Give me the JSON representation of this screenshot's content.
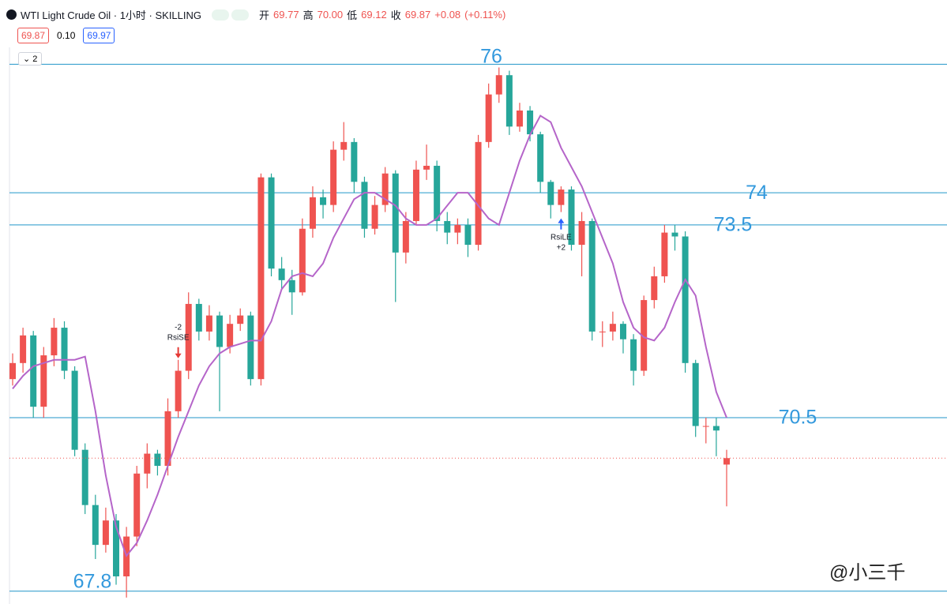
{
  "header": {
    "symbol": "WTI Light Crude Oil · 1小时 · SKILLING",
    "open_label": "开",
    "open": "69.77",
    "high_label": "高",
    "high": "70.00",
    "low_label": "低",
    "low": "69.12",
    "close_label": "收",
    "close": "69.87",
    "change": "+0.08",
    "change_pct": "(+0.11%)"
  },
  "order_bar": {
    "sell": "69.87",
    "spread": "0.10",
    "buy": "69.97"
  },
  "indicators_toggle": "2",
  "watermark": "@小三千",
  "chart_data": {
    "type": "candlestick",
    "ylim": [
      67.6,
      77.0
    ],
    "up_color": "#ef5350",
    "down_color": "#26a69a",
    "level_color": "#2196c9",
    "level_label_color": "#3399dd",
    "levels": [
      76,
      74,
      73.5,
      70.5,
      67.8
    ],
    "candles": [
      [
        71.1,
        71.5,
        71.0,
        71.35
      ],
      [
        71.35,
        71.9,
        71.2,
        71.78
      ],
      [
        71.78,
        71.85,
        70.5,
        70.67
      ],
      [
        70.67,
        71.6,
        70.5,
        71.47
      ],
      [
        71.47,
        72.05,
        71.3,
        71.9
      ],
      [
        71.9,
        72.0,
        71.1,
        71.23
      ],
      [
        71.23,
        71.3,
        69.9,
        70.0
      ],
      [
        70.0,
        70.1,
        69.0,
        69.14
      ],
      [
        69.14,
        69.3,
        68.3,
        68.52
      ],
      [
        68.52,
        69.1,
        68.4,
        68.9
      ],
      [
        68.9,
        69.0,
        67.9,
        68.03
      ],
      [
        68.03,
        68.8,
        67.7,
        68.65
      ],
      [
        68.65,
        69.75,
        68.5,
        69.63
      ],
      [
        69.63,
        70.1,
        69.4,
        69.94
      ],
      [
        69.94,
        70.0,
        69.6,
        69.75
      ],
      [
        69.75,
        70.8,
        69.6,
        70.6
      ],
      [
        70.6,
        71.4,
        70.5,
        71.23
      ],
      [
        71.23,
        72.45,
        71.1,
        72.27
      ],
      [
        72.27,
        72.35,
        71.7,
        71.84
      ],
      [
        71.84,
        72.25,
        71.7,
        72.09
      ],
      [
        72.09,
        72.15,
        70.6,
        71.6
      ],
      [
        71.6,
        72.1,
        71.5,
        71.96
      ],
      [
        71.96,
        72.2,
        71.85,
        72.09
      ],
      [
        72.09,
        72.15,
        71.0,
        71.1
      ],
      [
        71.1,
        74.3,
        71.0,
        74.24
      ],
      [
        74.24,
        74.3,
        72.7,
        72.82
      ],
      [
        72.82,
        73.0,
        72.5,
        72.64
      ],
      [
        72.64,
        72.8,
        72.1,
        72.45
      ],
      [
        72.45,
        73.6,
        72.4,
        73.44
      ],
      [
        73.44,
        74.1,
        73.3,
        73.93
      ],
      [
        73.93,
        74.05,
        73.6,
        73.81
      ],
      [
        73.81,
        74.8,
        73.7,
        74.67
      ],
      [
        74.67,
        75.1,
        74.5,
        74.79
      ],
      [
        74.79,
        74.85,
        74.0,
        74.17
      ],
      [
        74.17,
        74.25,
        73.3,
        73.44
      ],
      [
        73.44,
        73.95,
        73.35,
        73.81
      ],
      [
        73.81,
        74.4,
        73.7,
        74.3
      ],
      [
        74.3,
        74.35,
        72.3,
        73.07
      ],
      [
        73.07,
        73.7,
        72.9,
        73.56
      ],
      [
        73.56,
        74.5,
        73.5,
        74.36
      ],
      [
        74.36,
        74.75,
        74.2,
        74.42
      ],
      [
        74.42,
        74.5,
        73.4,
        73.56
      ],
      [
        73.56,
        73.7,
        73.2,
        73.38
      ],
      [
        73.38,
        73.6,
        73.2,
        73.5
      ],
      [
        73.5,
        73.6,
        73.0,
        73.19
      ],
      [
        73.19,
        74.9,
        73.1,
        74.79
      ],
      [
        74.79,
        75.7,
        74.7,
        75.53
      ],
      [
        75.53,
        75.95,
        75.4,
        75.83
      ],
      [
        75.83,
        75.9,
        74.9,
        75.03
      ],
      [
        75.03,
        75.4,
        74.95,
        75.28
      ],
      [
        75.28,
        75.35,
        74.8,
        74.91
      ],
      [
        74.91,
        74.95,
        74.0,
        74.17
      ],
      [
        74.17,
        74.2,
        73.6,
        73.81
      ],
      [
        73.81,
        74.1,
        73.7,
        74.05
      ],
      [
        74.05,
        74.1,
        73.1,
        73.19
      ],
      [
        73.19,
        73.7,
        72.7,
        73.56
      ],
      [
        73.56,
        73.6,
        71.7,
        71.84
      ],
      [
        71.84,
        72.0,
        71.6,
        71.84
      ],
      [
        71.84,
        72.15,
        71.7,
        71.96
      ],
      [
        71.96,
        72.0,
        71.5,
        71.72
      ],
      [
        71.72,
        71.8,
        71.0,
        71.23
      ],
      [
        71.23,
        72.4,
        71.15,
        72.33
      ],
      [
        72.33,
        72.85,
        72.2,
        72.7
      ],
      [
        72.7,
        73.5,
        72.6,
        73.38
      ],
      [
        73.38,
        73.5,
        73.1,
        73.32
      ],
      [
        73.32,
        73.4,
        71.2,
        71.35
      ],
      [
        71.35,
        71.4,
        70.2,
        70.37
      ],
      [
        70.37,
        70.5,
        70.1,
        70.37
      ],
      [
        70.37,
        70.5,
        69.9,
        70.3
      ],
      [
        69.77,
        70.0,
        69.12,
        69.87
      ]
    ],
    "ma": {
      "color": "#b565c9",
      "values": [
        70.95,
        71.15,
        71.3,
        71.35,
        71.4,
        71.4,
        71.4,
        71.45,
        70.6,
        69.6,
        68.8,
        68.35,
        68.55,
        68.9,
        69.3,
        69.75,
        70.2,
        70.6,
        71.0,
        71.3,
        71.5,
        71.6,
        71.65,
        71.7,
        71.7,
        72.0,
        72.5,
        72.7,
        72.75,
        72.7,
        72.9,
        73.3,
        73.6,
        73.9,
        74.0,
        74.0,
        73.9,
        73.8,
        73.6,
        73.5,
        73.5,
        73.6,
        73.8,
        74.0,
        74.0,
        73.8,
        73.6,
        73.5,
        74.0,
        74.5,
        74.9,
        75.2,
        75.1,
        74.7,
        74.4,
        74.1,
        73.7,
        73.3,
        72.9,
        72.3,
        71.9,
        71.75,
        71.7,
        71.9,
        72.3,
        72.65,
        72.4,
        71.6,
        70.9,
        70.5
      ]
    },
    "signals": [
      {
        "qty": "-2",
        "name": "RsiSE",
        "color": "#e53935"
      },
      {
        "name": "RsiLE",
        "qty": "+2",
        "color": "#2962ff"
      }
    ]
  }
}
